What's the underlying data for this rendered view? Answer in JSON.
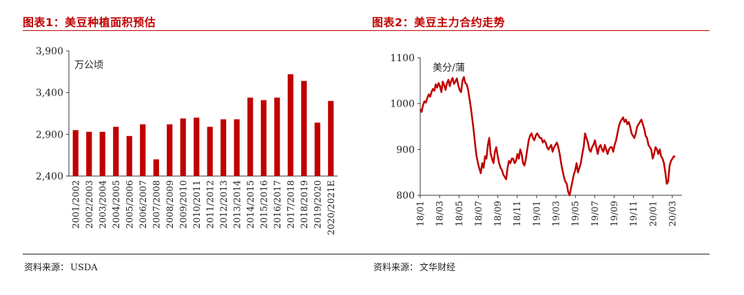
{
  "colors": {
    "accent": "#c00000",
    "bar": "#c00000",
    "line": "#c00000",
    "axis": "#333333"
  },
  "panels": [
    {
      "title": "图表1：美豆种植面积预估",
      "source_label": "资料来源：",
      "source_value": "USDA"
    },
    {
      "title": "图表2：美豆主力合约走势",
      "source_label": "资料来源：",
      "source_value": "文华财经"
    }
  ],
  "chart_data": [
    {
      "type": "bar",
      "unit_label": "万公顷",
      "ylim": [
        2400,
        3900
      ],
      "yticks": [
        "2,400",
        "2,900",
        "3,400",
        "3,900"
      ],
      "ytick_values": [
        2400,
        2900,
        3400,
        3900
      ],
      "categories": [
        "2001/2002",
        "2002/2003",
        "2003/2004",
        "2004/2005",
        "2005/2006",
        "2006/2007",
        "2007/2008",
        "2008/2009",
        "2009/2010",
        "2010/2011",
        "2011/2012",
        "2012/2013",
        "2013/2014",
        "2014/2015",
        "2015/2016",
        "2016/2017",
        "2017/2018",
        "2018/2019",
        "2019/2020",
        "2020/2021E"
      ],
      "values": [
        2950,
        2930,
        2930,
        2990,
        2880,
        3020,
        2600,
        3020,
        3090,
        3100,
        2990,
        3080,
        3080,
        3340,
        3310,
        3340,
        3620,
        3540,
        3040,
        3300
      ],
      "grid": false,
      "legend": "none"
    },
    {
      "type": "line",
      "unit_label": "美分/蒲",
      "ylim": [
        800,
        1100
      ],
      "yticks": [
        "800",
        "900",
        "1000",
        "1100"
      ],
      "ytick_values": [
        800,
        900,
        1000,
        1100
      ],
      "xticks": [
        "18/01",
        "18/03",
        "18/05",
        "18/07",
        "18/09",
        "18/11",
        "19/01",
        "19/03",
        "19/05",
        "19/07",
        "19/09",
        "19/11",
        "20/01",
        "20/03"
      ],
      "x_start": "2018-01",
      "x_end": "2020-04",
      "series": [
        {
          "values": [
            988,
            982,
            997,
            1005,
            1002,
            1012,
            1020,
            1015,
            1025,
            1032,
            1028,
            1042,
            1035,
            1045,
            1038,
            1025,
            1048,
            1040,
            1030,
            1045,
            1052,
            1038,
            1050,
            1056,
            1043,
            1048,
            1055,
            1040,
            1030,
            1025,
            1050,
            1058,
            1045,
            1042,
            1030,
            1010,
            990,
            965,
            940,
            910,
            885,
            870,
            858,
            848,
            870,
            860,
            885,
            880,
            910,
            925,
            890,
            880,
            870,
            895,
            905,
            885,
            870,
            860,
            855,
            845,
            840,
            835,
            860,
            875,
            870,
            880,
            880,
            870,
            875,
            890,
            880,
            900,
            890,
            870,
            865,
            880,
            900,
            920,
            930,
            935,
            925,
            920,
            930,
            935,
            930,
            925,
            925,
            915,
            920,
            915,
            905,
            900,
            905,
            910,
            895,
            905,
            910,
            915,
            905,
            890,
            870,
            855,
            840,
            830,
            825,
            808,
            800,
            815,
            830,
            845,
            855,
            870,
            850,
            860,
            870,
            890,
            905,
            935,
            925,
            915,
            900,
            895,
            905,
            910,
            920,
            905,
            890,
            905,
            910,
            900,
            895,
            910,
            900,
            890,
            900,
            905,
            905,
            895,
            910,
            920,
            935,
            950,
            960,
            965,
            970,
            960,
            965,
            955,
            960,
            950,
            935,
            930,
            925,
            935,
            950,
            955,
            960,
            965,
            955,
            945,
            930,
            925,
            910,
            905,
            900,
            880,
            890,
            905,
            900,
            890,
            900,
            885,
            880,
            870,
            850,
            825,
            830,
            865,
            875,
            880,
            885,
            884
          ]
        }
      ],
      "grid": false,
      "legend": "none"
    }
  ]
}
